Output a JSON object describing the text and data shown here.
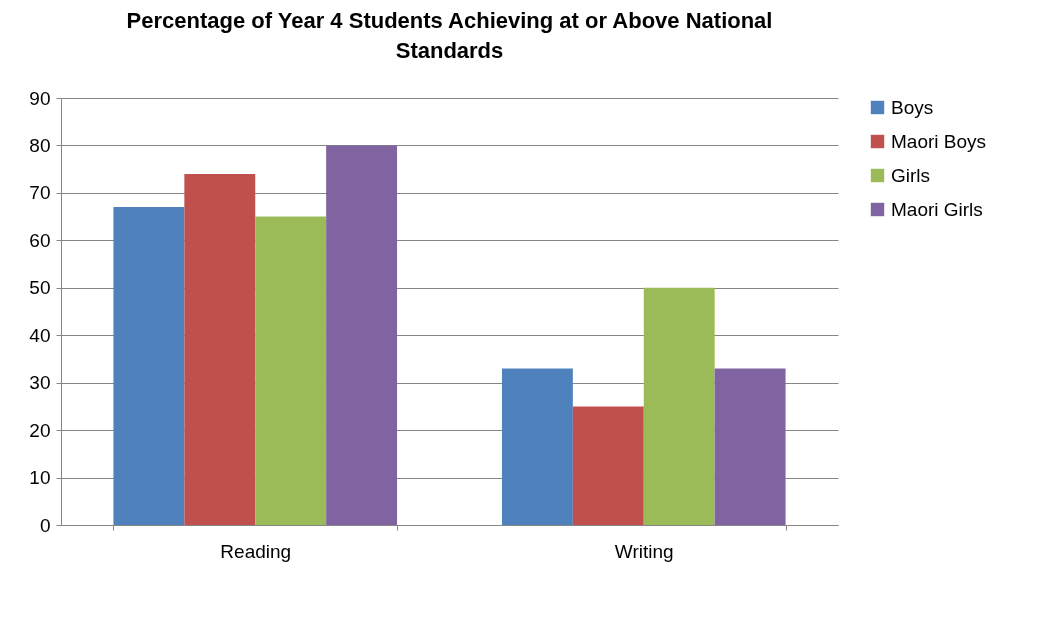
{
  "chart_data": {
    "type": "bar",
    "title": "Percentage of Year 4 Students Achieving at or Above National Standards",
    "categories": [
      "Reading",
      "Writing"
    ],
    "series": [
      {
        "name": "Boys",
        "color": "#4f81bd",
        "values": [
          67,
          33
        ]
      },
      {
        "name": "Maori Boys",
        "color": "#c0504d",
        "values": [
          74,
          25
        ]
      },
      {
        "name": "Girls",
        "color": "#9bbb59",
        "values": [
          65,
          50
        ]
      },
      {
        "name": "Maori Girls",
        "color": "#8064a2",
        "values": [
          80,
          33
        ]
      }
    ],
    "ylim": [
      0,
      90
    ],
    "yticks": [
      0,
      10,
      20,
      30,
      40,
      50,
      60,
      70,
      80,
      90
    ],
    "grid": "y",
    "legend": "right"
  }
}
